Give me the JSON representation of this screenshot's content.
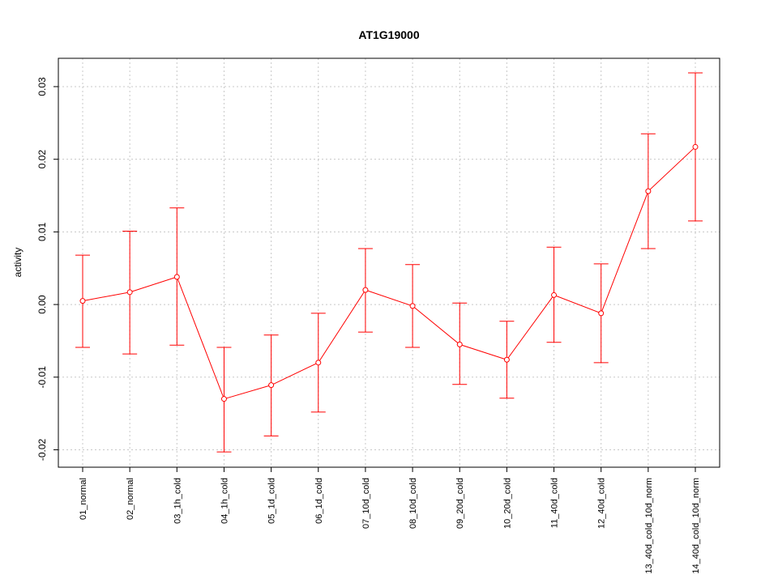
{
  "chart_data": {
    "type": "line",
    "title": "AT1G19000",
    "xlabel": "",
    "ylabel": "activity",
    "ylim": [
      -0.0224,
      0.0339
    ],
    "grid": true,
    "color": "#ff0000",
    "yticks": [
      -0.02,
      -0.01,
      0.0,
      0.01,
      0.02,
      0.03
    ],
    "ytick_labels": [
      "-0.02",
      "-0.01",
      "0.00",
      "0.01",
      "0.02",
      "0.03"
    ],
    "categories": [
      "01_normal",
      "02_normal",
      "03_1h_cold",
      "04_1h_cold",
      "05_1d_cold",
      "06_1d_cold",
      "07_10d_cold",
      "08_10d_cold",
      "09_20d_cold",
      "10_20d_cold",
      "11_40d_cold",
      "12_40d_cold",
      "13_40d_cold_10d_norm",
      "14_40d_cold_10d_norm"
    ],
    "values": [
      0.0005,
      0.0017,
      0.0038,
      -0.013,
      -0.0111,
      -0.008,
      0.002,
      -0.0002,
      -0.0055,
      -0.0076,
      0.0013,
      -0.0012,
      0.0156,
      0.0217
    ],
    "upper": [
      0.0068,
      0.0101,
      0.0133,
      -0.0059,
      -0.0042,
      -0.0012,
      0.0077,
      0.0055,
      0.0002,
      -0.0023,
      0.0079,
      0.0056,
      0.0235,
      0.0319
    ],
    "lower": [
      -0.0059,
      -0.0068,
      -0.0056,
      -0.0203,
      -0.0181,
      -0.0148,
      -0.0038,
      -0.0059,
      -0.011,
      -0.0129,
      -0.0052,
      -0.008,
      0.0077,
      0.0115
    ]
  }
}
